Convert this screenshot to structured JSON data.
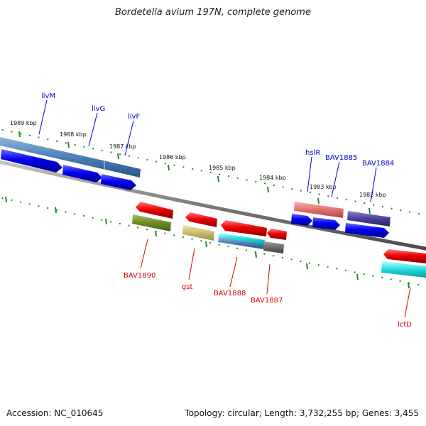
{
  "title": "Bordetella avium 197N, complete genome",
  "footer": {
    "accession": "Accession: NC_010645",
    "topology": "Topology: circular; Length: 3,732,255 bp; Genes: 3,455"
  },
  "scale_ticks": [
    "1989 kbp",
    "1988 kbp",
    "1987 kbp",
    "1986 kbp",
    "1985 kbp",
    "1984 kbp",
    "1983 kbp",
    "1982 kbp"
  ],
  "genes_forward": [
    {
      "name": "livM",
      "color": "#0000cc"
    },
    {
      "name": "livG",
      "color": "#0000cc"
    },
    {
      "name": "livF",
      "color": "#0000cc"
    },
    {
      "name": "hslR",
      "color": "#0000cc"
    },
    {
      "name": "BAV1885",
      "color": "#0000cc"
    },
    {
      "name": "BAV1884",
      "color": "#0000cc"
    }
  ],
  "genes_reverse": [
    {
      "name": "BAV1890",
      "color": "#dd0000"
    },
    {
      "name": "gst",
      "color": "#dd0000"
    },
    {
      "name": "BAV1888",
      "color": "#dd0000"
    },
    {
      "name": "BAV1887",
      "color": "#dd0000"
    },
    {
      "name": "lctD",
      "color": "#dd0000"
    }
  ],
  "colors": {
    "cds_forward": "#0000ee",
    "cds_reverse": "#ee0000",
    "backbone": "#888888",
    "ticks": "#228822"
  }
}
